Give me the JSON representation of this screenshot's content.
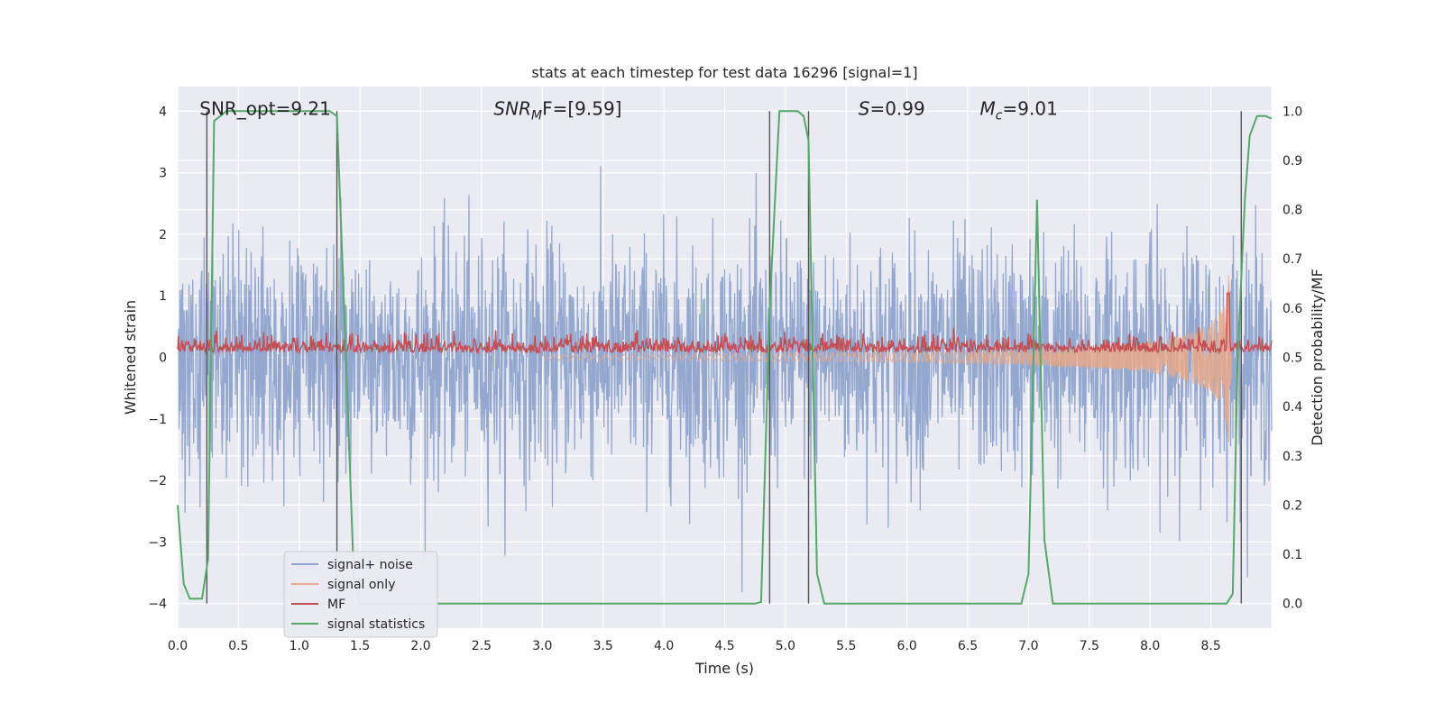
{
  "chart_data": {
    "type": "line",
    "title": "stats at each timestep for test data 16296 [signal=1]",
    "xlabel": "Time (s)",
    "ylabel": "Whitened strain",
    "ylabel_right": "Detection probability/MF",
    "xlim": [
      0,
      9.0
    ],
    "ylim": [
      -4.4,
      4.4
    ],
    "ylim_right": [
      -0.05,
      1.05
    ],
    "x_ticks": [
      "0.0",
      "0.5",
      "1.0",
      "1.5",
      "2.0",
      "2.5",
      "3.0",
      "3.5",
      "4.0",
      "4.5",
      "5.0",
      "5.5",
      "6.0",
      "6.5",
      "7.0",
      "7.5",
      "8.0",
      "8.5"
    ],
    "x_tick_values": [
      0,
      0.5,
      1.0,
      1.5,
      2.0,
      2.5,
      3.0,
      3.5,
      4.0,
      4.5,
      5.0,
      5.5,
      6.0,
      6.5,
      7.0,
      7.5,
      8.0,
      8.5
    ],
    "y_ticks": [
      "−4",
      "−3",
      "−2",
      "−1",
      "0",
      "1",
      "2",
      "3",
      "4"
    ],
    "y_tick_values": [
      -4,
      -3,
      -2,
      -1,
      0,
      1,
      2,
      3,
      4
    ],
    "y_ticks_right": [
      "0.0",
      "0.1",
      "0.2",
      "0.3",
      "0.4",
      "0.5",
      "0.6",
      "0.7",
      "0.8",
      "0.9",
      "1.0"
    ],
    "y_tick_values_right": [
      0.0,
      0.1,
      0.2,
      0.3,
      0.4,
      0.5,
      0.6,
      0.7,
      0.8,
      0.9,
      1.0
    ],
    "grid": true,
    "legend_position": "lower-left",
    "annotations": [
      {
        "text": "SNR_opt=9.21",
        "x": 0.18,
        "y": 4.0
      },
      {
        "text": "SNR_MF=[9.59]",
        "x": 2.6,
        "y": 4.0
      },
      {
        "text": "S=0.99",
        "x": 5.6,
        "y": 4.0
      },
      {
        "text": "M_c=9.01",
        "x": 6.6,
        "y": 4.0
      }
    ],
    "vlines": [
      0.24,
      1.31,
      4.87,
      5.19,
      8.75
    ],
    "series": [
      {
        "name": "signal+ noise",
        "axis": "left",
        "color": "#8fa4cc",
        "noise_amplitude_std": 0.95,
        "x_range": [
          0,
          9.0
        ]
      },
      {
        "name": "signal only",
        "axis": "left",
        "color": "#e8a88a",
        "description_points": {
          "x": [
            0,
            4.0,
            6.0,
            7.0,
            7.5,
            8.0,
            8.3,
            8.5,
            8.6,
            8.65,
            8.67
          ],
          "envelope": [
            0.02,
            0.05,
            0.08,
            0.12,
            0.17,
            0.25,
            0.38,
            0.55,
            0.8,
            1.5,
            0.0
          ]
        }
      },
      {
        "name": "MF",
        "axis": "right",
        "color": "#c44e52",
        "baseline": 0.51,
        "noise": 0.015,
        "peak_x": 8.64,
        "peak_y": 0.63
      },
      {
        "name": "signal statistics",
        "axis": "right",
        "color": "#55a868",
        "x": [
          0.0,
          0.05,
          0.1,
          0.15,
          0.2,
          0.25,
          0.3,
          0.35,
          0.4,
          0.5,
          1.25,
          1.31,
          1.37,
          1.45,
          1.5,
          4.75,
          4.8,
          4.87,
          4.95,
          5.1,
          5.15,
          5.19,
          5.26,
          5.32,
          6.94,
          7.0,
          7.07,
          7.13,
          7.2,
          8.63,
          8.68,
          8.72,
          8.78,
          8.82,
          8.88,
          8.95,
          9.0
        ],
        "y": [
          0.2,
          0.04,
          0.01,
          0.01,
          0.01,
          0.09,
          0.98,
          0.99,
          1.0,
          1.0,
          1.0,
          0.99,
          0.6,
          0.05,
          0.0,
          0.0,
          0.003,
          0.6,
          1.0,
          1.0,
          0.99,
          0.94,
          0.06,
          0.0,
          0.0,
          0.06,
          0.82,
          0.13,
          0.0,
          0.0,
          0.02,
          0.5,
          0.82,
          0.95,
          0.99,
          0.99,
          0.985
        ]
      }
    ]
  }
}
